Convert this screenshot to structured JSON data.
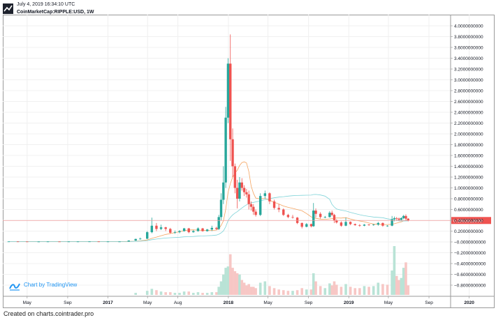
{
  "header": {
    "timestamp": "July 4, 2019 16:34:10 UTC",
    "symbol": "CoinMarketCap:RIPPLE:USD, 1W"
  },
  "watermark": {
    "text": "Chart by TradingView",
    "icon": "tradingview-logo-icon"
  },
  "footer": {
    "text": "Created on charts.cointrader.pro"
  },
  "colors": {
    "up": "#26a69a",
    "down": "#ef5350",
    "volume_up": "#b9e3d6",
    "volume_down": "#f7c7c5",
    "ma_short": "#f4a460",
    "ma_long": "#7fd3d8",
    "price_line": "#ef9a9a",
    "price_label_bg": "#ef5350",
    "grid": "#f0f0f0"
  },
  "chart_data": {
    "type": "candlestick",
    "timeframe": "1W",
    "symbol": "CoinMarketCap:RIPPLE:USD",
    "y_ticks": [
      "4.0000000000",
      "3.8000000000",
      "3.6000000000",
      "3.4000000000",
      "3.2000000000",
      "3.0000000000",
      "2.8000000000",
      "2.6000000000",
      "2.4000000000",
      "2.2000000000",
      "2.0000000000",
      "1.8000000000",
      "1.6000000000",
      "1.4000000000",
      "1.2000000000",
      "1.0000000000",
      "0.8000000000",
      "0.6000000000",
      "0.4000000000",
      "0.2000000000",
      "−0.0000000000",
      "−0.2000000000",
      "−0.4000000000",
      "−0.6000000000",
      "−0.8000000000"
    ],
    "y_tick_values": [
      4.0,
      3.8,
      3.6,
      3.4,
      3.2,
      3.0,
      2.8,
      2.6,
      2.4,
      2.2,
      2.0,
      1.8,
      1.6,
      1.4,
      1.2,
      1.0,
      0.8,
      0.6,
      0.4,
      0.2,
      0.0,
      -0.2,
      -0.4,
      -0.6,
      -0.8
    ],
    "ylim": [
      -0.8,
      4.0
    ],
    "x_ticks": [
      {
        "label": "May",
        "date": "2016-05-01",
        "bold": false
      },
      {
        "label": "Sep",
        "date": "2016-09-01",
        "bold": false
      },
      {
        "label": "2017",
        "date": "2017-01-01",
        "bold": true
      },
      {
        "label": "May",
        "date": "2017-05-01",
        "bold": false
      },
      {
        "label": "Aug",
        "date": "2017-08-01",
        "bold": false
      },
      {
        "label": "2018",
        "date": "2018-01-01",
        "bold": true
      },
      {
        "label": "May",
        "date": "2018-05-01",
        "bold": false
      },
      {
        "label": "Sep",
        "date": "2018-09-01",
        "bold": false
      },
      {
        "label": "2019",
        "date": "2019-01-01",
        "bold": true
      },
      {
        "label": "May",
        "date": "2019-05-01",
        "bold": false
      },
      {
        "label": "Sep",
        "date": "2019-09-01",
        "bold": false
      },
      {
        "label": "2020",
        "date": "2020-01-01",
        "bold": true
      }
    ],
    "current_price": 0.39639186,
    "current_price_label": "0.3963918600",
    "candles": [
      {
        "date": "2016-03-06",
        "o": 0.008,
        "h": 0.009,
        "l": 0.007,
        "c": 0.008
      },
      {
        "date": "2016-04-03",
        "o": 0.008,
        "h": 0.009,
        "l": 0.006,
        "c": 0.007
      },
      {
        "date": "2016-05-01",
        "o": 0.007,
        "h": 0.008,
        "l": 0.006,
        "c": 0.006
      },
      {
        "date": "2016-06-05",
        "o": 0.006,
        "h": 0.008,
        "l": 0.005,
        "c": 0.006
      },
      {
        "date": "2016-07-03",
        "o": 0.006,
        "h": 0.008,
        "l": 0.006,
        "c": 0.007
      },
      {
        "date": "2016-08-07",
        "o": 0.007,
        "h": 0.008,
        "l": 0.006,
        "c": 0.006
      },
      {
        "date": "2016-09-04",
        "o": 0.006,
        "h": 0.008,
        "l": 0.006,
        "c": 0.007
      },
      {
        "date": "2016-10-02",
        "o": 0.007,
        "h": 0.008,
        "l": 0.006,
        "c": 0.007
      },
      {
        "date": "2016-11-06",
        "o": 0.007,
        "h": 0.009,
        "l": 0.006,
        "c": 0.008
      },
      {
        "date": "2016-12-04",
        "o": 0.008,
        "h": 0.009,
        "l": 0.006,
        "c": 0.006
      },
      {
        "date": "2017-01-01",
        "o": 0.006,
        "h": 0.008,
        "l": 0.006,
        "c": 0.007
      },
      {
        "date": "2017-02-05",
        "o": 0.007,
        "h": 0.008,
        "l": 0.006,
        "c": 0.007
      },
      {
        "date": "2017-03-05",
        "o": 0.007,
        "h": 0.03,
        "l": 0.006,
        "c": 0.025
      },
      {
        "date": "2017-03-26",
        "o": 0.025,
        "h": 0.06,
        "l": 0.02,
        "c": 0.055
      },
      {
        "date": "2017-04-09",
        "o": 0.055,
        "h": 0.08,
        "l": 0.04,
        "c": 0.06
      },
      {
        "date": "2017-04-30",
        "o": 0.06,
        "h": 0.2,
        "l": 0.05,
        "c": 0.18
      },
      {
        "date": "2017-05-14",
        "o": 0.18,
        "h": 0.45,
        "l": 0.16,
        "c": 0.3
      },
      {
        "date": "2017-05-28",
        "o": 0.3,
        "h": 0.35,
        "l": 0.2,
        "c": 0.24
      },
      {
        "date": "2017-06-11",
        "o": 0.24,
        "h": 0.32,
        "l": 0.22,
        "c": 0.27
      },
      {
        "date": "2017-06-25",
        "o": 0.27,
        "h": 0.28,
        "l": 0.2,
        "c": 0.24
      },
      {
        "date": "2017-07-09",
        "o": 0.24,
        "h": 0.26,
        "l": 0.15,
        "c": 0.17
      },
      {
        "date": "2017-07-23",
        "o": 0.17,
        "h": 0.21,
        "l": 0.15,
        "c": 0.18
      },
      {
        "date": "2017-08-06",
        "o": 0.18,
        "h": 0.22,
        "l": 0.16,
        "c": 0.2
      },
      {
        "date": "2017-08-20",
        "o": 0.2,
        "h": 0.26,
        "l": 0.19,
        "c": 0.25
      },
      {
        "date": "2017-09-03",
        "o": 0.25,
        "h": 0.26,
        "l": 0.16,
        "c": 0.18
      },
      {
        "date": "2017-09-17",
        "o": 0.18,
        "h": 0.22,
        "l": 0.17,
        "c": 0.2
      },
      {
        "date": "2017-10-01",
        "o": 0.2,
        "h": 0.27,
        "l": 0.19,
        "c": 0.25
      },
      {
        "date": "2017-10-15",
        "o": 0.25,
        "h": 0.26,
        "l": 0.19,
        "c": 0.2
      },
      {
        "date": "2017-10-29",
        "o": 0.2,
        "h": 0.24,
        "l": 0.19,
        "c": 0.23
      },
      {
        "date": "2017-11-12",
        "o": 0.23,
        "h": 0.3,
        "l": 0.2,
        "c": 0.26
      },
      {
        "date": "2017-11-26",
        "o": 0.26,
        "h": 0.28,
        "l": 0.22,
        "c": 0.24
      },
      {
        "date": "2017-12-03",
        "o": 0.24,
        "h": 0.5,
        "l": 0.22,
        "c": 0.46
      },
      {
        "date": "2017-12-10",
        "o": 0.46,
        "h": 0.9,
        "l": 0.4,
        "c": 0.78
      },
      {
        "date": "2017-12-17",
        "o": 0.78,
        "h": 1.4,
        "l": 0.7,
        "c": 1.1
      },
      {
        "date": "2017-12-24",
        "o": 1.1,
        "h": 2.5,
        "l": 1.0,
        "c": 2.3
      },
      {
        "date": "2017-12-31",
        "o": 2.3,
        "h": 3.4,
        "l": 2.2,
        "c": 3.3
      },
      {
        "date": "2018-01-07",
        "o": 3.3,
        "h": 3.84,
        "l": 1.5,
        "c": 1.9
      },
      {
        "date": "2018-01-14",
        "o": 1.9,
        "h": 2.1,
        "l": 1.2,
        "c": 1.4
      },
      {
        "date": "2018-01-21",
        "o": 1.4,
        "h": 1.45,
        "l": 0.9,
        "c": 1.0
      },
      {
        "date": "2018-01-28",
        "o": 1.0,
        "h": 1.15,
        "l": 0.62,
        "c": 0.8
      },
      {
        "date": "2018-02-04",
        "o": 0.8,
        "h": 1.2,
        "l": 0.75,
        "c": 1.1
      },
      {
        "date": "2018-02-11",
        "o": 1.1,
        "h": 1.18,
        "l": 0.95,
        "c": 1.0
      },
      {
        "date": "2018-02-18",
        "o": 1.0,
        "h": 1.05,
        "l": 0.85,
        "c": 0.92
      },
      {
        "date": "2018-02-25",
        "o": 0.92,
        "h": 0.98,
        "l": 0.82,
        "c": 0.88
      },
      {
        "date": "2018-03-04",
        "o": 0.88,
        "h": 0.95,
        "l": 0.6,
        "c": 0.7
      },
      {
        "date": "2018-03-11",
        "o": 0.7,
        "h": 0.75,
        "l": 0.58,
        "c": 0.65
      },
      {
        "date": "2018-03-18",
        "o": 0.65,
        "h": 0.7,
        "l": 0.5,
        "c": 0.56
      },
      {
        "date": "2018-03-25",
        "o": 0.56,
        "h": 0.6,
        "l": 0.47,
        "c": 0.5
      },
      {
        "date": "2018-04-08",
        "o": 0.5,
        "h": 0.9,
        "l": 0.48,
        "c": 0.85
      },
      {
        "date": "2018-04-22",
        "o": 0.85,
        "h": 0.95,
        "l": 0.8,
        "c": 0.9
      },
      {
        "date": "2018-05-06",
        "o": 0.9,
        "h": 0.92,
        "l": 0.7,
        "c": 0.75
      },
      {
        "date": "2018-05-20",
        "o": 0.75,
        "h": 0.78,
        "l": 0.6,
        "c": 0.63
      },
      {
        "date": "2018-06-03",
        "o": 0.63,
        "h": 0.7,
        "l": 0.55,
        "c": 0.6
      },
      {
        "date": "2018-06-17",
        "o": 0.6,
        "h": 0.62,
        "l": 0.48,
        "c": 0.5
      },
      {
        "date": "2018-07-01",
        "o": 0.5,
        "h": 0.52,
        "l": 0.44,
        "c": 0.46
      },
      {
        "date": "2018-07-15",
        "o": 0.46,
        "h": 0.5,
        "l": 0.43,
        "c": 0.45
      },
      {
        "date": "2018-07-29",
        "o": 0.45,
        "h": 0.46,
        "l": 0.33,
        "c": 0.35
      },
      {
        "date": "2018-08-12",
        "o": 0.35,
        "h": 0.36,
        "l": 0.25,
        "c": 0.28
      },
      {
        "date": "2018-08-26",
        "o": 0.28,
        "h": 0.35,
        "l": 0.27,
        "c": 0.33
      },
      {
        "date": "2018-09-09",
        "o": 0.33,
        "h": 0.34,
        "l": 0.27,
        "c": 0.29
      },
      {
        "date": "2018-09-16",
        "o": 0.29,
        "h": 0.72,
        "l": 0.28,
        "c": 0.58
      },
      {
        "date": "2018-09-23",
        "o": 0.58,
        "h": 0.62,
        "l": 0.45,
        "c": 0.52
      },
      {
        "date": "2018-10-07",
        "o": 0.52,
        "h": 0.55,
        "l": 0.43,
        "c": 0.46
      },
      {
        "date": "2018-10-21",
        "o": 0.46,
        "h": 0.48,
        "l": 0.44,
        "c": 0.46
      },
      {
        "date": "2018-11-04",
        "o": 0.46,
        "h": 0.57,
        "l": 0.45,
        "c": 0.54
      },
      {
        "date": "2018-11-11",
        "o": 0.54,
        "h": 0.58,
        "l": 0.48,
        "c": 0.5
      },
      {
        "date": "2018-11-18",
        "o": 0.5,
        "h": 0.52,
        "l": 0.35,
        "c": 0.4
      },
      {
        "date": "2018-11-25",
        "o": 0.4,
        "h": 0.42,
        "l": 0.34,
        "c": 0.36
      },
      {
        "date": "2018-12-09",
        "o": 0.36,
        "h": 0.38,
        "l": 0.28,
        "c": 0.3
      },
      {
        "date": "2018-12-23",
        "o": 0.3,
        "h": 0.45,
        "l": 0.29,
        "c": 0.37
      },
      {
        "date": "2019-01-06",
        "o": 0.37,
        "h": 0.38,
        "l": 0.31,
        "c": 0.33
      },
      {
        "date": "2019-01-20",
        "o": 0.33,
        "h": 0.34,
        "l": 0.3,
        "c": 0.31
      },
      {
        "date": "2019-02-03",
        "o": 0.31,
        "h": 0.33,
        "l": 0.28,
        "c": 0.3
      },
      {
        "date": "2019-02-17",
        "o": 0.3,
        "h": 0.33,
        "l": 0.29,
        "c": 0.32
      },
      {
        "date": "2019-03-03",
        "o": 0.32,
        "h": 0.33,
        "l": 0.3,
        "c": 0.31
      },
      {
        "date": "2019-03-17",
        "o": 0.31,
        "h": 0.33,
        "l": 0.3,
        "c": 0.32
      },
      {
        "date": "2019-03-31",
        "o": 0.32,
        "h": 0.37,
        "l": 0.3,
        "c": 0.35
      },
      {
        "date": "2019-04-14",
        "o": 0.35,
        "h": 0.36,
        "l": 0.28,
        "c": 0.3
      },
      {
        "date": "2019-04-28",
        "o": 0.3,
        "h": 0.31,
        "l": 0.28,
        "c": 0.3
      },
      {
        "date": "2019-05-12",
        "o": 0.3,
        "h": 0.48,
        "l": 0.29,
        "c": 0.42
      },
      {
        "date": "2019-05-19",
        "o": 0.42,
        "h": 0.47,
        "l": 0.38,
        "c": 0.44
      },
      {
        "date": "2019-05-26",
        "o": 0.44,
        "h": 0.46,
        "l": 0.4,
        "c": 0.43
      },
      {
        "date": "2019-06-02",
        "o": 0.43,
        "h": 0.45,
        "l": 0.39,
        "c": 0.41
      },
      {
        "date": "2019-06-09",
        "o": 0.41,
        "h": 0.46,
        "l": 0.4,
        "c": 0.44
      },
      {
        "date": "2019-06-16",
        "o": 0.44,
        "h": 0.5,
        "l": 0.42,
        "c": 0.48
      },
      {
        "date": "2019-06-23",
        "o": 0.48,
        "h": 0.51,
        "l": 0.4,
        "c": 0.43
      },
      {
        "date": "2019-06-30",
        "o": 0.43,
        "h": 0.44,
        "l": 0.38,
        "c": 0.396
      }
    ],
    "volume": [
      {
        "date": "2017-03-26",
        "v": 0.03,
        "up": true
      },
      {
        "date": "2017-04-30",
        "v": 0.06,
        "up": true
      },
      {
        "date": "2017-05-14",
        "v": 0.09,
        "up": true
      },
      {
        "date": "2017-05-28",
        "v": 0.07,
        "up": false
      },
      {
        "date": "2017-06-11",
        "v": 0.05,
        "up": true
      },
      {
        "date": "2017-06-25",
        "v": 0.04,
        "up": false
      },
      {
        "date": "2017-07-09",
        "v": 0.04,
        "up": false
      },
      {
        "date": "2017-07-23",
        "v": 0.03,
        "up": true
      },
      {
        "date": "2017-08-06",
        "v": 0.03,
        "up": true
      },
      {
        "date": "2017-08-20",
        "v": 0.05,
        "up": true
      },
      {
        "date": "2017-09-03",
        "v": 0.05,
        "up": false
      },
      {
        "date": "2017-09-17",
        "v": 0.03,
        "up": true
      },
      {
        "date": "2017-10-01",
        "v": 0.04,
        "up": true
      },
      {
        "date": "2017-10-15",
        "v": 0.03,
        "up": false
      },
      {
        "date": "2017-10-29",
        "v": 0.03,
        "up": true
      },
      {
        "date": "2017-11-12",
        "v": 0.04,
        "up": true
      },
      {
        "date": "2017-11-26",
        "v": 0.04,
        "up": false
      },
      {
        "date": "2017-12-03",
        "v": 0.12,
        "up": true
      },
      {
        "date": "2017-12-10",
        "v": 0.2,
        "up": true
      },
      {
        "date": "2017-12-17",
        "v": 0.3,
        "up": true
      },
      {
        "date": "2017-12-24",
        "v": 0.4,
        "up": true
      },
      {
        "date": "2017-12-31",
        "v": 0.42,
        "up": true
      },
      {
        "date": "2018-01-07",
        "v": 0.6,
        "up": false
      },
      {
        "date": "2018-01-14",
        "v": 0.4,
        "up": false
      },
      {
        "date": "2018-01-21",
        "v": 0.35,
        "up": false
      },
      {
        "date": "2018-01-28",
        "v": 0.32,
        "up": false
      },
      {
        "date": "2018-02-04",
        "v": 0.3,
        "up": true
      },
      {
        "date": "2018-02-11",
        "v": 0.22,
        "up": false
      },
      {
        "date": "2018-02-18",
        "v": 0.18,
        "up": false
      },
      {
        "date": "2018-02-25",
        "v": 0.14,
        "up": false
      },
      {
        "date": "2018-03-04",
        "v": 0.16,
        "up": false
      },
      {
        "date": "2018-03-11",
        "v": 0.12,
        "up": false
      },
      {
        "date": "2018-03-18",
        "v": 0.12,
        "up": false
      },
      {
        "date": "2018-03-25",
        "v": 0.1,
        "up": false
      },
      {
        "date": "2018-04-08",
        "v": 0.18,
        "up": true
      },
      {
        "date": "2018-04-22",
        "v": 0.2,
        "up": true
      },
      {
        "date": "2018-05-06",
        "v": 0.13,
        "up": false
      },
      {
        "date": "2018-05-20",
        "v": 0.1,
        "up": false
      },
      {
        "date": "2018-06-03",
        "v": 0.08,
        "up": false
      },
      {
        "date": "2018-06-17",
        "v": 0.07,
        "up": false
      },
      {
        "date": "2018-07-01",
        "v": 0.06,
        "up": false
      },
      {
        "date": "2018-07-15",
        "v": 0.06,
        "up": true
      },
      {
        "date": "2018-07-29",
        "v": 0.07,
        "up": false
      },
      {
        "date": "2018-08-12",
        "v": 0.1,
        "up": false
      },
      {
        "date": "2018-08-26",
        "v": 0.08,
        "up": true
      },
      {
        "date": "2018-09-09",
        "v": 0.08,
        "up": false
      },
      {
        "date": "2018-09-16",
        "v": 0.32,
        "up": true
      },
      {
        "date": "2018-09-23",
        "v": 0.2,
        "up": false
      },
      {
        "date": "2018-10-07",
        "v": 0.13,
        "up": false
      },
      {
        "date": "2018-10-21",
        "v": 0.1,
        "up": true
      },
      {
        "date": "2018-11-04",
        "v": 0.17,
        "up": true
      },
      {
        "date": "2018-11-11",
        "v": 0.14,
        "up": false
      },
      {
        "date": "2018-11-18",
        "v": 0.2,
        "up": false
      },
      {
        "date": "2018-11-25",
        "v": 0.15,
        "up": false
      },
      {
        "date": "2018-12-09",
        "v": 0.12,
        "up": false
      },
      {
        "date": "2018-12-23",
        "v": 0.16,
        "up": true
      },
      {
        "date": "2019-01-06",
        "v": 0.12,
        "up": false
      },
      {
        "date": "2019-01-20",
        "v": 0.1,
        "up": false
      },
      {
        "date": "2019-02-03",
        "v": 0.1,
        "up": false
      },
      {
        "date": "2019-02-17",
        "v": 0.13,
        "up": true
      },
      {
        "date": "2019-03-03",
        "v": 0.12,
        "up": false
      },
      {
        "date": "2019-03-17",
        "v": 0.13,
        "up": true
      },
      {
        "date": "2019-03-31",
        "v": 0.18,
        "up": true
      },
      {
        "date": "2019-04-14",
        "v": 0.16,
        "up": false
      },
      {
        "date": "2019-04-28",
        "v": 0.15,
        "up": false
      },
      {
        "date": "2019-05-12",
        "v": 0.36,
        "up": true
      },
      {
        "date": "2019-05-19",
        "v": 0.72,
        "up": true
      },
      {
        "date": "2019-05-26",
        "v": 0.28,
        "up": false
      },
      {
        "date": "2019-06-02",
        "v": 0.22,
        "up": false
      },
      {
        "date": "2019-06-09",
        "v": 0.25,
        "up": true
      },
      {
        "date": "2019-06-16",
        "v": 0.4,
        "up": true
      },
      {
        "date": "2019-06-23",
        "v": 0.48,
        "up": false
      },
      {
        "date": "2019-06-30",
        "v": 0.14,
        "up": false
      }
    ]
  }
}
